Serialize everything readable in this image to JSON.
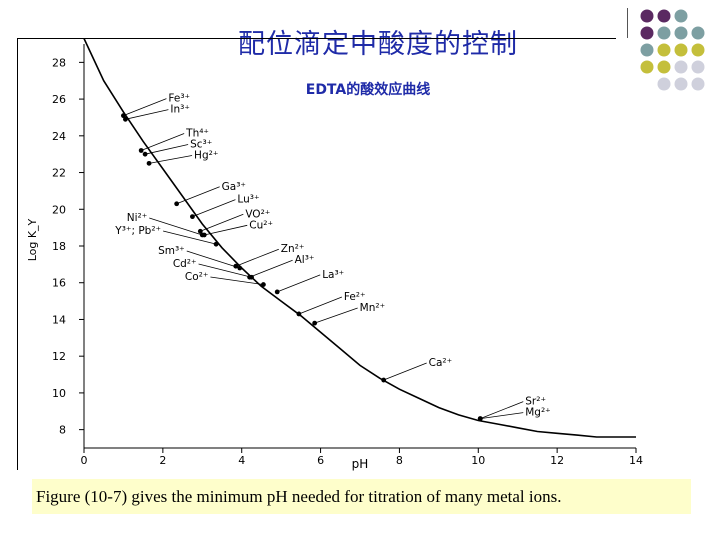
{
  "slide": {
    "title": "配位滴定中酸度的控制",
    "caption": "Figure (10-7) gives the minimum pH needed for titration of many metal ions."
  },
  "colors": {
    "title": "#1f2ba8",
    "caption_bg": "#fefecb",
    "deco_purple": "#5b2a62",
    "deco_teal": "#7d9fa2",
    "deco_olive": "#c4bf3b",
    "deco_gray": "#cfd0dc"
  },
  "decoration": {
    "dot_grid": [
      [
        "deco_purple",
        "deco_purple",
        "deco_teal",
        null
      ],
      [
        "deco_purple",
        "deco_teal",
        "deco_teal",
        "deco_teal"
      ],
      [
        "deco_teal",
        "deco_olive",
        "deco_olive",
        "deco_olive"
      ],
      [
        "deco_olive",
        "deco_olive",
        "deco_gray",
        "deco_gray"
      ],
      [
        null,
        "deco_gray",
        "deco_gray",
        "deco_gray"
      ]
    ]
  },
  "chart_data": {
    "type": "line",
    "title": "EDTA的酸效应曲线",
    "xlabel": "pH",
    "ylabel": "Log K_Y",
    "xlim": [
      0,
      14
    ],
    "ylim": [
      7,
      29
    ],
    "x_ticks": [
      "0",
      "2",
      "4",
      "6",
      "8",
      "10",
      "12",
      "14"
    ],
    "y_ticks": [
      "8",
      "10",
      "12",
      "14",
      "16",
      "18",
      "20",
      "22",
      "24",
      "26",
      "28"
    ],
    "curve": {
      "x": [
        0.0,
        0.5,
        1.0,
        1.5,
        2.0,
        2.5,
        3.0,
        3.5,
        4.0,
        4.5,
        5.0,
        5.5,
        6.0,
        6.5,
        7.0,
        7.5,
        8.0,
        8.5,
        9.0,
        9.5,
        10.0,
        10.5,
        11.0,
        11.5,
        12.0,
        12.5,
        13.0,
        13.5,
        14.0
      ],
      "y": [
        29.3,
        27.0,
        25.3,
        23.7,
        22.2,
        20.7,
        19.2,
        17.9,
        16.8,
        15.8,
        15.0,
        14.2,
        13.3,
        12.4,
        11.5,
        10.8,
        10.2,
        9.7,
        9.2,
        8.8,
        8.5,
        8.3,
        8.1,
        7.9,
        7.8,
        7.7,
        7.6,
        7.6,
        7.6
      ]
    },
    "points": [
      {
        "label": "Fe³⁺",
        "pH": 1.0,
        "logK": 25.1,
        "side": "right"
      },
      {
        "label": "In³⁺",
        "pH": 1.05,
        "logK": 24.9,
        "side": "right"
      },
      {
        "label": "Th⁴⁺",
        "pH": 1.45,
        "logK": 23.2,
        "side": "right"
      },
      {
        "label": "Sc³⁺",
        "pH": 1.55,
        "logK": 23.0,
        "side": "right"
      },
      {
        "label": "Hg²⁺",
        "pH": 1.65,
        "logK": 22.5,
        "side": "right"
      },
      {
        "label": "Ga³⁺",
        "pH": 2.35,
        "logK": 20.3,
        "side": "right"
      },
      {
        "label": "Lu³⁺",
        "pH": 2.75,
        "logK": 19.6,
        "side": "right"
      },
      {
        "label": "VO²⁺",
        "pH": 2.95,
        "logK": 18.8,
        "side": "right"
      },
      {
        "label": "Cu²⁺",
        "pH": 3.05,
        "logK": 18.6,
        "side": "right"
      },
      {
        "label": "Ni²⁺",
        "pH": 3.0,
        "logK": 18.6,
        "side": "left"
      },
      {
        "label": "Y³⁺; Pb²⁺",
        "pH": 3.35,
        "logK": 18.1,
        "side": "left"
      },
      {
        "label": "Zn²⁺",
        "pH": 3.85,
        "logK": 16.9,
        "side": "right"
      },
      {
        "label": "Sm³⁺",
        "pH": 3.95,
        "logK": 16.8,
        "side": "left"
      },
      {
        "label": "Al³⁺",
        "pH": 4.2,
        "logK": 16.3,
        "side": "right"
      },
      {
        "label": "Cd²⁺",
        "pH": 4.25,
        "logK": 16.3,
        "side": "left"
      },
      {
        "label": "Co²⁺",
        "pH": 4.55,
        "logK": 15.9,
        "side": "left"
      },
      {
        "label": "La³⁺",
        "pH": 4.9,
        "logK": 15.5,
        "side": "right"
      },
      {
        "label": "Fe²⁺",
        "pH": 5.45,
        "logK": 14.3,
        "side": "right"
      },
      {
        "label": "Mn²⁺",
        "pH": 5.85,
        "logK": 13.8,
        "side": "right"
      },
      {
        "label": "Ca²⁺",
        "pH": 7.6,
        "logK": 10.7,
        "side": "right"
      },
      {
        "label": "Sr²⁺",
        "pH": 10.05,
        "logK": 8.6,
        "side": "right"
      },
      {
        "label": "Mg²⁺",
        "pH": 10.05,
        "logK": 8.6,
        "side": "right"
      }
    ]
  }
}
